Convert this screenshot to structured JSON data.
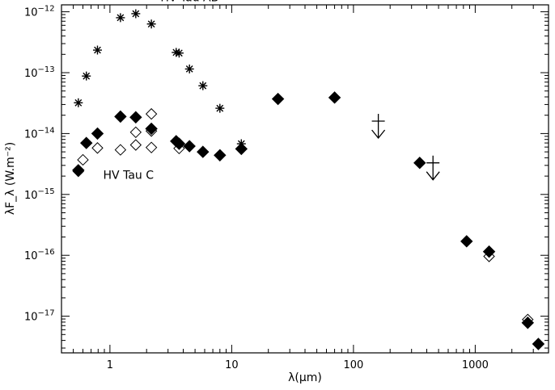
{
  "chart_data": {
    "type": "scatter",
    "title": "",
    "xlabel": "λ(μm)",
    "ylabel": "λF_λ (W.m⁻²)",
    "xscale": "log",
    "yscale": "log",
    "xlim": [
      0.4,
      4000
    ],
    "ylim": [
      2.5e-18,
      1.3e-12
    ],
    "x_ticks": [
      {
        "value": 1,
        "label": "1"
      },
      {
        "value": 10,
        "label": "10"
      },
      {
        "value": 100,
        "label": "100"
      },
      {
        "value": 1000,
        "label": "1000"
      }
    ],
    "y_ticks": [
      {
        "value": 1e-17,
        "mantissa": "10",
        "exp": "−17"
      },
      {
        "value": 1e-16,
        "mantissa": "10",
        "exp": "−16"
      },
      {
        "value": 1e-15,
        "mantissa": "10",
        "exp": "−15"
      },
      {
        "value": 1e-14,
        "mantissa": "10",
        "exp": "−14"
      },
      {
        "value": 1e-13,
        "mantissa": "10",
        "exp": "−13"
      },
      {
        "value": 1e-12,
        "mantissa": "10",
        "exp": "−12"
      }
    ],
    "annotations": [
      {
        "text": "HV Tau AB",
        "x": 2.6,
        "y": 1.5e-12
      },
      {
        "text": "HV Tau C",
        "x": 0.88,
        "y": 1.8e-15
      }
    ],
    "series": [
      {
        "marker": "asterisk",
        "points": [
          {
            "x": 0.55,
            "y": 3.2e-14
          },
          {
            "x": 0.64,
            "y": 8.8e-14
          },
          {
            "x": 0.79,
            "y": 2.35e-13
          },
          {
            "x": 1.22,
            "y": 8e-13
          },
          {
            "x": 1.63,
            "y": 9.3e-13
          },
          {
            "x": 2.19,
            "y": 6.3e-13
          },
          {
            "x": 3.5,
            "y": 2.15e-13
          },
          {
            "x": 3.7,
            "y": 2.1e-13
          },
          {
            "x": 4.5,
            "y": 1.15e-13
          },
          {
            "x": 5.8,
            "y": 6.1e-14
          },
          {
            "x": 8.0,
            "y": 2.6e-14
          },
          {
            "x": 12.0,
            "y": 6.8e-15
          }
        ]
      },
      {
        "marker": "filled-diamond",
        "points": [
          {
            "x": 0.55,
            "y": 2.5e-15
          },
          {
            "x": 0.64,
            "y": 7e-15
          },
          {
            "x": 0.79,
            "y": 1e-14
          },
          {
            "x": 1.22,
            "y": 1.9e-14
          },
          {
            "x": 1.63,
            "y": 1.85e-14
          },
          {
            "x": 2.19,
            "y": 1.2e-14
          },
          {
            "x": 3.5,
            "y": 7.5e-15
          },
          {
            "x": 3.7,
            "y": 6.8e-15
          },
          {
            "x": 4.5,
            "y": 6.2e-15
          },
          {
            "x": 5.8,
            "y": 5e-15
          },
          {
            "x": 8.0,
            "y": 4.4e-15
          },
          {
            "x": 12.0,
            "y": 5.6e-15
          },
          {
            "x": 24.0,
            "y": 3.7e-14
          },
          {
            "x": 70.0,
            "y": 3.9e-14
          },
          {
            "x": 350.0,
            "y": 3.3e-15
          },
          {
            "x": 850.0,
            "y": 1.7e-16
          },
          {
            "x": 1300.0,
            "y": 1.15e-16
          },
          {
            "x": 2700.0,
            "y": 7.8e-18
          },
          {
            "x": 3300.0,
            "y": 3.5e-18
          }
        ]
      },
      {
        "marker": "open-diamond",
        "points": [
          {
            "x": 0.55,
            "y": 2.4e-15
          },
          {
            "x": 0.6,
            "y": 3.7e-15
          },
          {
            "x": 0.79,
            "y": 5.8e-15
          },
          {
            "x": 1.22,
            "y": 5.4e-15
          },
          {
            "x": 1.63,
            "y": 6.5e-15
          },
          {
            "x": 1.63,
            "y": 1.05e-14
          },
          {
            "x": 2.19,
            "y": 5.9e-15
          },
          {
            "x": 2.19,
            "y": 1.1e-14
          },
          {
            "x": 2.19,
            "y": 2.1e-14
          },
          {
            "x": 3.7,
            "y": 5.7e-15
          },
          {
            "x": 1300.0,
            "y": 9.6e-17
          },
          {
            "x": 2700.0,
            "y": 8.8e-18
          }
        ]
      },
      {
        "marker": "upper-limit",
        "points": [
          {
            "x": 160.0,
            "y": 1.6e-14
          },
          {
            "x": 450.0,
            "y": 3.3e-15
          }
        ]
      }
    ]
  }
}
